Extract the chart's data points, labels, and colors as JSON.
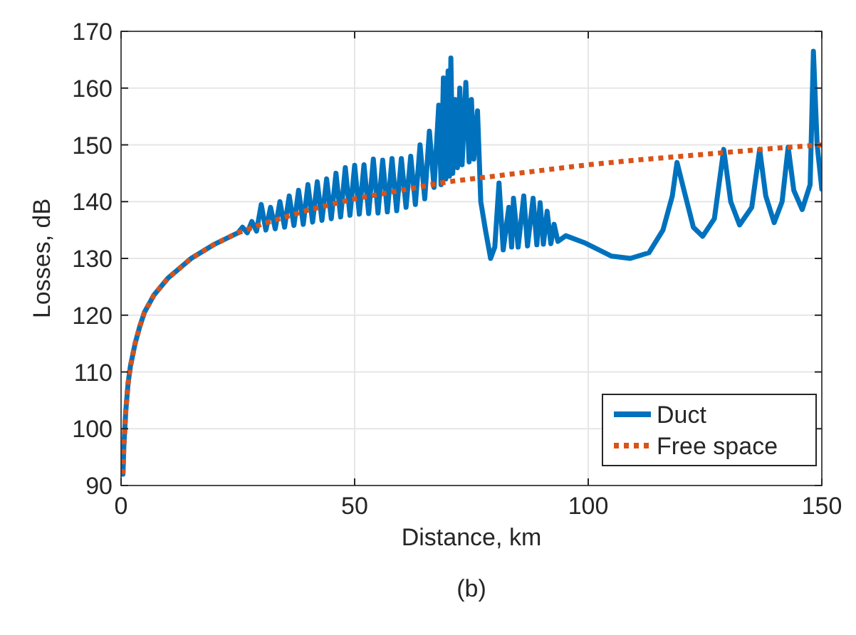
{
  "chart_data": {
    "type": "line",
    "xlabel": "Distance, km",
    "ylabel": "Losses, dB",
    "annotations": [
      "(b)"
    ],
    "xlim": [
      0,
      150
    ],
    "xticks": [
      0,
      50,
      100,
      150
    ],
    "ylim": [
      90,
      170
    ],
    "yticks": [
      90,
      100,
      110,
      120,
      130,
      140,
      150,
      160,
      170
    ],
    "grid": true,
    "legend": "bottom right",
    "series": [
      {
        "name": "Duct",
        "color": "#0072bd",
        "line_style": "solid",
        "x": [
          0.4,
          0.6,
          1,
          1.5,
          2,
          3,
          4,
          5,
          7,
          10,
          15,
          20,
          25,
          26,
          27,
          28,
          29,
          30,
          31,
          32,
          33,
          34,
          35,
          36,
          37,
          38,
          39,
          40,
          41,
          42,
          43,
          44,
          45,
          46,
          47,
          48,
          49,
          50,
          51,
          52,
          53,
          54,
          55,
          56,
          57,
          58,
          59,
          60,
          61,
          62,
          63,
          64,
          65,
          66,
          67,
          68,
          68.5,
          69,
          69.5,
          70,
          70.3,
          70.6,
          71,
          71.5,
          72,
          72.5,
          73,
          73.8,
          74.5,
          75,
          75.5,
          76.3,
          77,
          78,
          79.1,
          80,
          80.9,
          81.8,
          83,
          83.6,
          84,
          85,
          86.2,
          87,
          88.2,
          89,
          89.7,
          90.4,
          91.2,
          92,
          92.7,
          93.5,
          95.2,
          99.1,
          105,
          109,
          113,
          116,
          118,
          119,
          120.5,
          122.5,
          124.5,
          127,
          129,
          130.5,
          132.4,
          135,
          136.7,
          138,
          139.8,
          141.5,
          142.8,
          144,
          145.8,
          147.5,
          148.2,
          149,
          150
        ],
        "values": [
          92,
          97,
          103,
          108,
          111,
          115,
          118,
          120.5,
          123.5,
          126.5,
          130,
          132.5,
          134.5,
          135.5,
          134.5,
          136.5,
          134.8,
          139.5,
          135,
          139,
          135.2,
          140,
          135.5,
          141,
          135.8,
          142,
          136,
          143,
          136.4,
          143.5,
          136.7,
          144,
          137,
          145,
          137.3,
          146,
          137.6,
          146.4,
          137.8,
          146.5,
          137.9,
          147.5,
          138,
          147.3,
          138.2,
          147.6,
          138.4,
          147.6,
          139,
          148,
          139.5,
          150,
          140.5,
          152.4,
          142.5,
          157,
          143,
          161.8,
          144,
          163,
          144.5,
          165.3,
          145,
          158,
          146,
          160,
          146.5,
          161,
          147,
          158,
          147.5,
          156,
          140,
          135,
          130,
          132,
          143.3,
          131.5,
          139,
          132,
          140.6,
          132,
          141,
          132.2,
          140.6,
          132.4,
          139.8,
          132.5,
          138.3,
          132.6,
          136,
          133,
          134,
          132.8,
          130.4,
          130,
          131,
          135,
          141,
          146.9,
          142,
          135.5,
          133.9,
          137,
          149.2,
          140,
          135.9,
          139,
          149.2,
          141,
          136.3,
          140,
          149.6,
          142,
          138.6,
          143,
          166.5,
          150,
          142.2
        ]
      },
      {
        "name": "Free space",
        "color": "#d95319",
        "line_style": "dotted",
        "x": [
          0.4,
          0.6,
          1,
          1.5,
          2,
          3,
          4,
          5,
          7,
          10,
          15,
          20,
          25,
          30,
          40,
          50,
          60,
          70,
          80,
          90,
          100,
          110,
          120,
          130,
          140,
          150
        ],
        "values": [
          92,
          97,
          103,
          108,
          111,
          115,
          118,
          120.5,
          123.5,
          126.5,
          130,
          132.5,
          134.5,
          136,
          138.5,
          140.5,
          142,
          143.5,
          144.5,
          145.5,
          146.5,
          147.3,
          148,
          148.7,
          149.4,
          150
        ]
      }
    ]
  }
}
